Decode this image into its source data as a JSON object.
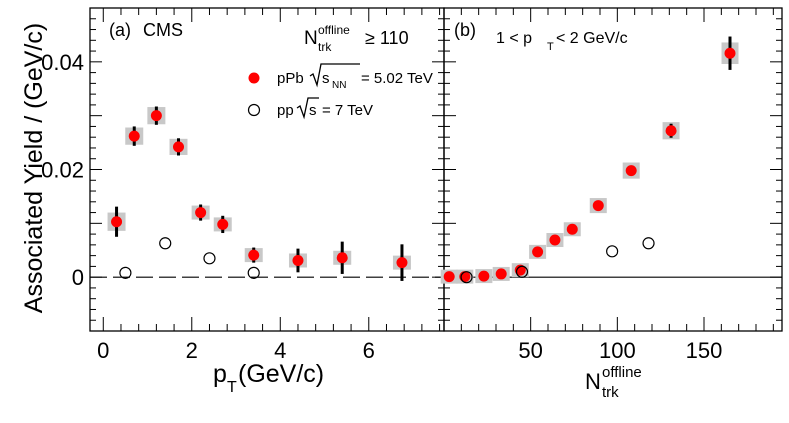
{
  "ylabel": "Associated Yield / (GeV/c)",
  "colors": {
    "ppb": "#ff0000",
    "syst": "#c8c8c8",
    "pp": "#000000"
  },
  "chart_data": [
    {
      "type": "scatter",
      "panel": "(a)",
      "panel_label": "(a)",
      "experiment_label": "CMS",
      "xlim": [
        -0.3,
        7.7
      ],
      "ylim": [
        -0.01,
        0.05
      ],
      "x_ticks": [
        "0",
        "2",
        "4",
        "6"
      ],
      "x_tick_values": [
        0,
        2,
        4,
        6
      ],
      "y_ticks": [
        "0",
        "0.02",
        "0.04"
      ],
      "y_tick_values": [
        0,
        0.02,
        0.04
      ],
      "xlabel_main": "p",
      "xlabel_sub": "T",
      "xlabel_rest": "(GeV/c)",
      "selection_main": "N",
      "selection_sup": "offline",
      "selection_sub": "trk",
      "selection_rest": "≥ 110",
      "legend_position": "top-right",
      "legend": {
        "ppb_prefix": "pPb",
        "ppb_s": "s",
        "ppb_sub": "NN",
        "ppb_value": "= 5.02 TeV",
        "pp_prefix": "pp",
        "pp_s": "s",
        "pp_value": "= 7 TeV"
      },
      "zero_line": "dashed",
      "series": [
        {
          "name": "pPb √sNN = 5.02 TeV",
          "x": [
            0.3,
            0.7,
            1.2,
            1.7,
            2.2,
            2.7,
            3.4,
            4.4,
            5.4,
            6.75
          ],
          "y": [
            0.0103,
            0.0262,
            0.03,
            0.0242,
            0.012,
            0.0098,
            0.0041,
            0.0031,
            0.0036,
            0.0027
          ],
          "stat_err": [
            0.0028,
            0.0018,
            0.0017,
            0.0016,
            0.0015,
            0.0016,
            0.0014,
            0.0022,
            0.003,
            0.0034
          ],
          "syst_err": [
            0.0017,
            0.0016,
            0.0016,
            0.0015,
            0.0012,
            0.0011,
            0.001,
            0.001,
            0.001,
            0.0008
          ]
        },
        {
          "name": "pp √s = 7 TeV",
          "x": [
            0.5,
            1.4,
            2.4,
            3.4
          ],
          "y": [
            0.0008,
            0.0063,
            0.0035,
            0.0008
          ]
        }
      ]
    },
    {
      "type": "scatter",
      "panel": "(b)",
      "panel_label": "(b)",
      "selection_left": "1 < p",
      "selection_sub": "T",
      "selection_right": "< 2 GeV/c",
      "xlim": [
        0,
        195
      ],
      "ylim": [
        -0.01,
        0.05
      ],
      "x_ticks": [
        "50",
        "100",
        "150"
      ],
      "x_tick_values": [
        50,
        100,
        150
      ],
      "xlabel_main": "N",
      "xlabel_sup": "offline",
      "xlabel_sub": "trk",
      "zero_line": "solid",
      "series": [
        {
          "name": "pPb √sNN = 5.02 TeV",
          "x": [
            3,
            12,
            23,
            33,
            44,
            54,
            64,
            74,
            89,
            108,
            131,
            165
          ],
          "y": [
            0.0001,
            0.0001,
            0.0002,
            0.0006,
            0.0013,
            0.0047,
            0.0069,
            0.0089,
            0.0133,
            0.0198,
            0.0272,
            0.0416
          ],
          "stat_err": [
            0.0004,
            0.0004,
            0.0004,
            0.0004,
            0.0005,
            0.0005,
            0.0005,
            0.0006,
            0.0007,
            0.0009,
            0.0013,
            0.0031
          ],
          "syst_err": [
            0.001,
            0.001,
            0.001,
            0.001,
            0.001,
            0.0012,
            0.0013,
            0.0013,
            0.0014,
            0.0015,
            0.0016,
            0.002
          ]
        },
        {
          "name": "pp √s = 7 TeV",
          "x": [
            13,
            45,
            97,
            118
          ],
          "y": [
            0.0,
            0.001,
            0.0048,
            0.0063
          ]
        }
      ]
    }
  ]
}
